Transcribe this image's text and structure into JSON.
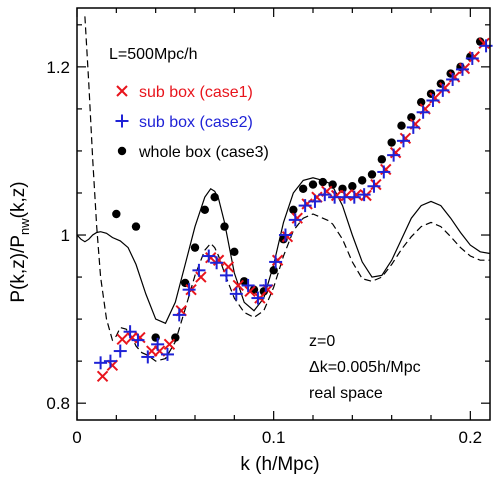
{
  "chart_data": {
    "type": "scatter",
    "xlabel": "k (h/Mpc)",
    "ylabel": "P(k,z)/P",
    "ylabel_sub": "nw",
    "ylabel_tail": "(k,z)",
    "xlim": [
      0,
      0.21
    ],
    "ylim": [
      0.78,
      1.27
    ],
    "xticks": [
      0,
      0.1,
      0.2
    ],
    "xtick_labels": [
      "0",
      "0.1",
      "0.2"
    ],
    "yticks": [
      0.8,
      1.0,
      1.2
    ],
    "ytick_labels": [
      "0.8",
      "1",
      "1.2"
    ],
    "annotations": {
      "box": "L=500Mpc/h",
      "z": "z=0",
      "dk": "Δk=0.005h/Mpc",
      "space": "real space"
    },
    "colors": {
      "case1": "#e8141c",
      "case2": "#1f22d6",
      "case3": "#000000"
    },
    "series": [
      {
        "name": "sub box (case1)",
        "marker": "x",
        "color": "#e8141c",
        "x": [
          0.013,
          0.018,
          0.023,
          0.028,
          0.032,
          0.038,
          0.042,
          0.047,
          0.053,
          0.058,
          0.063,
          0.068,
          0.072,
          0.077,
          0.082,
          0.088,
          0.093,
          0.097,
          0.102,
          0.107,
          0.112,
          0.117,
          0.122,
          0.127,
          0.132,
          0.137,
          0.142,
          0.147,
          0.152,
          0.157,
          0.162,
          0.167,
          0.172,
          0.177,
          0.182,
          0.187,
          0.192,
          0.197,
          0.202,
          0.207
        ],
        "y": [
          0.832,
          0.845,
          0.876,
          0.878,
          0.878,
          0.862,
          0.862,
          0.87,
          0.91,
          0.935,
          0.95,
          0.973,
          0.97,
          0.962,
          0.94,
          0.933,
          0.925,
          0.935,
          0.97,
          0.998,
          1.02,
          1.037,
          1.045,
          1.052,
          1.047,
          1.047,
          1.048,
          1.047,
          1.06,
          1.078,
          1.098,
          1.115,
          1.132,
          1.15,
          1.163,
          1.175,
          1.188,
          1.198,
          1.212,
          1.228
        ]
      },
      {
        "name": "sub box (case2)",
        "marker": "+",
        "color": "#1f22d6",
        "x": [
          0.012,
          0.017,
          0.022,
          0.027,
          0.031,
          0.036,
          0.041,
          0.046,
          0.052,
          0.057,
          0.062,
          0.067,
          0.071,
          0.076,
          0.081,
          0.087,
          0.092,
          0.096,
          0.101,
          0.106,
          0.111,
          0.116,
          0.121,
          0.126,
          0.131,
          0.136,
          0.141,
          0.146,
          0.151,
          0.156,
          0.161,
          0.166,
          0.171,
          0.176,
          0.181,
          0.186,
          0.191,
          0.196,
          0.201,
          0.208
        ],
        "y": [
          0.848,
          0.85,
          0.862,
          0.885,
          0.875,
          0.855,
          0.87,
          0.858,
          0.905,
          0.935,
          0.958,
          0.975,
          0.967,
          0.952,
          0.93,
          0.94,
          0.925,
          0.94,
          0.968,
          1.0,
          1.018,
          1.035,
          1.04,
          1.048,
          1.045,
          1.045,
          1.045,
          1.048,
          1.058,
          1.075,
          1.095,
          1.112,
          1.128,
          1.146,
          1.16,
          1.172,
          1.185,
          1.197,
          1.21,
          1.225
        ]
      },
      {
        "name": "whole box (case3)",
        "marker": "dot",
        "color": "#000000",
        "x": [
          0.02,
          0.03,
          0.04,
          0.05,
          0.055,
          0.06,
          0.065,
          0.07,
          0.075,
          0.08,
          0.085,
          0.09,
          0.095,
          0.1,
          0.105,
          0.11,
          0.115,
          0.12,
          0.125,
          0.13,
          0.135,
          0.14,
          0.145,
          0.15,
          0.155,
          0.16,
          0.165,
          0.17,
          0.175,
          0.18,
          0.185,
          0.19,
          0.195,
          0.2,
          0.205
        ],
        "y": [
          1.025,
          1.01,
          0.878,
          0.878,
          0.943,
          0.985,
          1.03,
          1.045,
          1.01,
          0.98,
          0.945,
          0.935,
          0.933,
          0.958,
          0.995,
          1.03,
          1.055,
          1.06,
          1.063,
          1.06,
          1.055,
          1.058,
          1.065,
          1.072,
          1.09,
          1.11,
          1.13,
          1.14,
          1.158,
          1.168,
          1.18,
          1.192,
          1.2,
          1.212,
          1.23
        ]
      },
      {
        "name": "",
        "marker": "solid-line",
        "color": "#000000",
        "x": [
          0.0,
          0.002,
          0.004,
          0.006,
          0.008,
          0.01,
          0.012,
          0.015,
          0.018,
          0.022,
          0.026,
          0.03,
          0.035,
          0.04,
          0.045,
          0.05,
          0.055,
          0.06,
          0.065,
          0.068,
          0.07,
          0.072,
          0.075,
          0.08,
          0.085,
          0.09,
          0.095,
          0.1,
          0.105,
          0.11,
          0.115,
          0.12,
          0.125,
          0.128,
          0.13,
          0.135,
          0.14,
          0.145,
          0.15,
          0.155,
          0.16,
          0.165,
          0.17,
          0.175,
          0.18,
          0.185,
          0.19,
          0.195,
          0.2,
          0.205,
          0.21
        ],
        "y": [
          1.0,
          0.995,
          0.992,
          0.995,
          1.0,
          1.003,
          1.004,
          1.002,
          0.997,
          0.993,
          0.985,
          0.965,
          0.93,
          0.9,
          0.895,
          0.92,
          0.965,
          1.01,
          1.045,
          1.055,
          1.052,
          1.043,
          1.015,
          0.955,
          0.92,
          0.91,
          0.925,
          0.965,
          1.015,
          1.05,
          1.065,
          1.068,
          1.065,
          1.062,
          1.058,
          1.035,
          1.0,
          0.968,
          0.95,
          0.952,
          0.97,
          0.995,
          1.02,
          1.035,
          1.04,
          1.035,
          1.02,
          1.003,
          0.988,
          0.98,
          0.978
        ]
      },
      {
        "name": "",
        "marker": "dashed-line",
        "color": "#000000",
        "x": [
          0.004,
          0.006,
          0.008,
          0.01,
          0.012,
          0.015,
          0.018,
          0.02,
          0.022,
          0.025,
          0.028,
          0.03,
          0.033,
          0.036,
          0.04,
          0.045,
          0.05,
          0.055,
          0.06,
          0.065,
          0.068,
          0.07,
          0.072,
          0.075,
          0.08,
          0.085,
          0.09,
          0.095,
          0.1,
          0.105,
          0.11,
          0.115,
          0.12,
          0.125,
          0.128,
          0.13,
          0.135,
          0.14,
          0.145,
          0.15,
          0.155,
          0.16,
          0.165,
          0.17,
          0.175,
          0.18,
          0.185,
          0.19,
          0.195,
          0.2,
          0.205,
          0.21
        ],
        "y": [
          1.26,
          1.18,
          1.09,
          1.01,
          0.95,
          0.9,
          0.875,
          0.88,
          0.89,
          0.888,
          0.878,
          0.868,
          0.86,
          0.857,
          0.85,
          0.853,
          0.873,
          0.912,
          0.952,
          0.982,
          0.99,
          0.985,
          0.975,
          0.955,
          0.925,
          0.908,
          0.902,
          0.91,
          0.938,
          0.975,
          1.005,
          1.02,
          1.025,
          1.02,
          1.017,
          1.013,
          0.995,
          0.968,
          0.948,
          0.945,
          0.95,
          0.965,
          0.983,
          0.998,
          1.01,
          1.015,
          1.01,
          0.998,
          0.985,
          0.975,
          0.97,
          0.97
        ]
      }
    ]
  }
}
